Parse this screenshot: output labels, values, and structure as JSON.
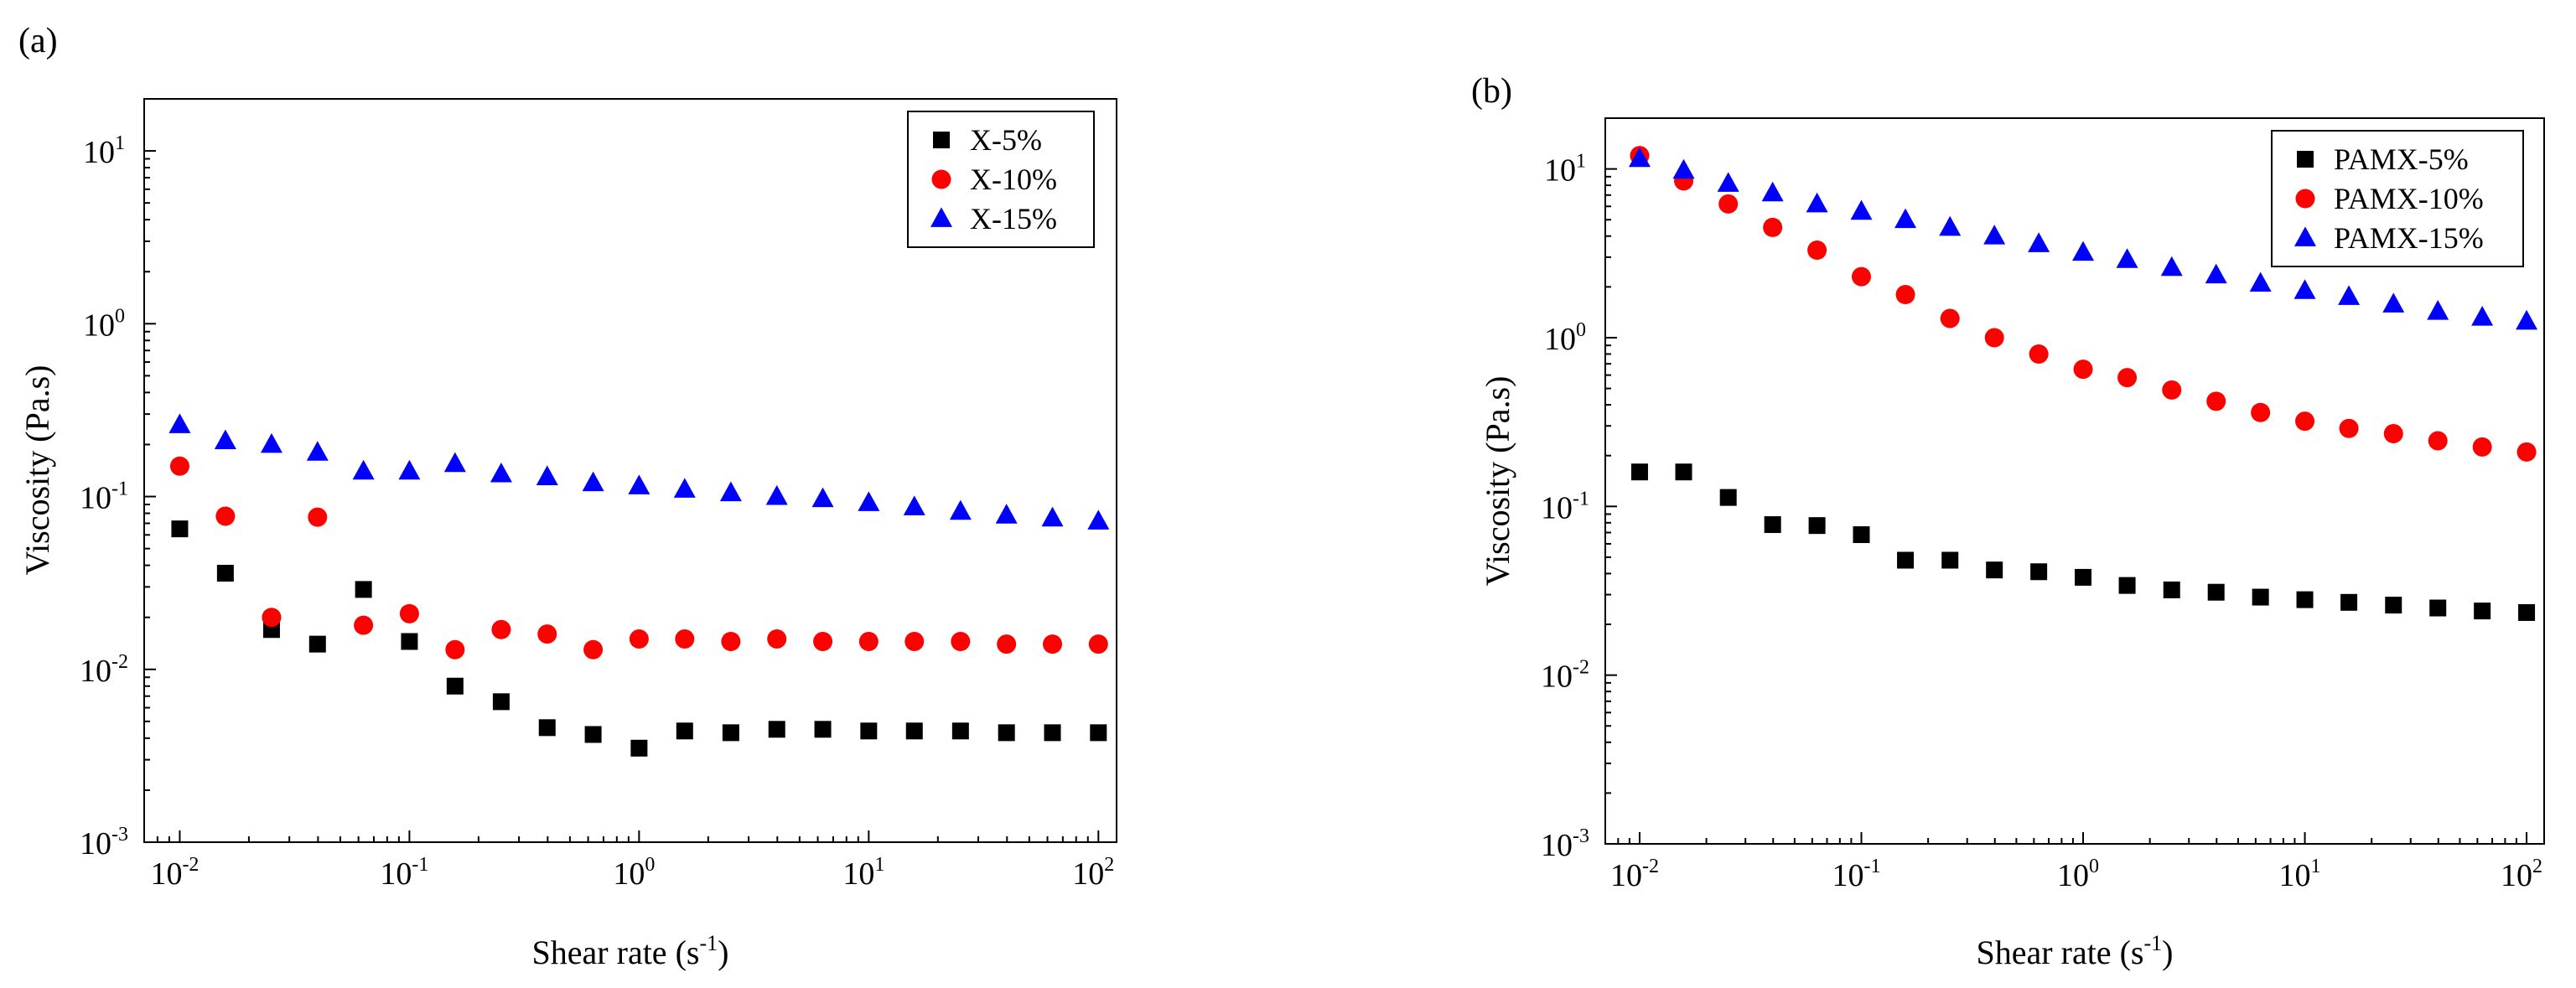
{
  "chart_data": [
    {
      "type": "scatter",
      "panel_label": "(a)",
      "xlabel": "Shear rate (s",
      "xlabel_sup": "-1",
      "xlabel_end": ")",
      "ylabel": "Viscosity (Pa.s)",
      "x_scale": "log",
      "y_scale": "log",
      "xlim": [
        0.007,
        120
      ],
      "ylim": [
        0.001,
        20
      ],
      "x_ticks": [
        0.01,
        0.1,
        1,
        10,
        100
      ],
      "x_tick_labels": [
        {
          "base": "10",
          "exp": "-2"
        },
        {
          "base": "10",
          "exp": "-1"
        },
        {
          "base": "10",
          "exp": "0"
        },
        {
          "base": "10",
          "exp": "1"
        },
        {
          "base": "10",
          "exp": "2"
        }
      ],
      "y_ticks": [
        0.001,
        0.01,
        0.1,
        1,
        10
      ],
      "y_tick_labels": [
        {
          "base": "10",
          "exp": "-3"
        },
        {
          "base": "10",
          "exp": "-2"
        },
        {
          "base": "10",
          "exp": "-1"
        },
        {
          "base": "10",
          "exp": "0"
        },
        {
          "base": "10",
          "exp": "1"
        }
      ],
      "legend_position": "top-right",
      "grid": false,
      "x": [
        0.01,
        0.0158,
        0.0251,
        0.0398,
        0.0631,
        0.1,
        0.158,
        0.251,
        0.398,
        0.631,
        1,
        1.58,
        2.51,
        3.98,
        6.31,
        10,
        15.8,
        25.1,
        39.8,
        63.1,
        100
      ],
      "series": [
        {
          "name": "X-5%",
          "marker": "square",
          "color": "#000000",
          "values": [
            0.065,
            0.036,
            0.017,
            0.014,
            0.029,
            0.0145,
            0.008,
            0.0065,
            0.0046,
            0.0042,
            0.0035,
            0.0044,
            0.0043,
            0.0045,
            0.0045,
            0.0044,
            0.0044,
            0.0044,
            0.0043,
            0.0043,
            0.0043
          ]
        },
        {
          "name": "X-10%",
          "marker": "circle",
          "color": "#ff0000",
          "values": [
            0.15,
            0.077,
            0.02,
            0.076,
            0.018,
            0.021,
            0.013,
            0.017,
            0.016,
            0.013,
            0.015,
            0.015,
            0.0145,
            0.015,
            0.0145,
            0.0145,
            0.0145,
            0.0145,
            0.014,
            0.014,
            0.014
          ]
        },
        {
          "name": "X-15%",
          "marker": "triangle",
          "color": "#0000ff",
          "values": [
            0.26,
            0.21,
            0.2,
            0.18,
            0.14,
            0.14,
            0.155,
            0.135,
            0.13,
            0.12,
            0.115,
            0.11,
            0.105,
            0.1,
            0.097,
            0.092,
            0.087,
            0.082,
            0.078,
            0.075,
            0.072
          ]
        }
      ]
    },
    {
      "type": "scatter",
      "panel_label": "(b)",
      "xlabel": "Shear rate (s",
      "xlabel_sup": "-1",
      "xlabel_end": ")",
      "ylabel": "Viscosity (Pa.s)",
      "x_scale": "log",
      "y_scale": "log",
      "xlim": [
        0.007,
        120
      ],
      "ylim": [
        0.001,
        20
      ],
      "x_ticks": [
        0.01,
        0.1,
        1,
        10,
        100
      ],
      "x_tick_labels": [
        {
          "base": "10",
          "exp": "-2"
        },
        {
          "base": "10",
          "exp": "-1"
        },
        {
          "base": "10",
          "exp": "0"
        },
        {
          "base": "10",
          "exp": "1"
        },
        {
          "base": "10",
          "exp": "2"
        }
      ],
      "y_ticks": [
        0.001,
        0.01,
        0.1,
        1,
        10
      ],
      "y_tick_labels": [
        {
          "base": "10",
          "exp": "-3"
        },
        {
          "base": "10",
          "exp": "-2"
        },
        {
          "base": "10",
          "exp": "-1"
        },
        {
          "base": "10",
          "exp": "0"
        },
        {
          "base": "10",
          "exp": "1"
        }
      ],
      "legend_position": "top-right",
      "grid": false,
      "x": [
        0.01,
        0.0158,
        0.0251,
        0.0398,
        0.0631,
        0.1,
        0.158,
        0.251,
        0.398,
        0.631,
        1,
        1.58,
        2.51,
        3.98,
        6.31,
        10,
        15.8,
        25.1,
        39.8,
        63.1,
        100
      ],
      "series": [
        {
          "name": "PAMX-5%",
          "marker": "square",
          "color": "#000000",
          "values": [
            0.16,
            0.16,
            0.113,
            0.078,
            0.077,
            0.068,
            0.048,
            0.048,
            0.042,
            0.041,
            0.038,
            0.034,
            0.032,
            0.031,
            0.029,
            0.028,
            0.027,
            0.026,
            0.025,
            0.024,
            0.0235
          ]
        },
        {
          "name": "PAMX-10%",
          "marker": "circle",
          "color": "#ff0000",
          "values": [
            12,
            8.5,
            6.2,
            4.5,
            3.3,
            2.3,
            1.8,
            1.3,
            1.0,
            0.8,
            0.65,
            0.58,
            0.49,
            0.42,
            0.36,
            0.32,
            0.29,
            0.27,
            0.245,
            0.225,
            0.21
          ]
        },
        {
          "name": "PAMX-15%",
          "marker": "triangle",
          "color": "#0000ff",
          "values": [
            11.5,
            9.8,
            8.2,
            7.2,
            6.2,
            5.6,
            5.0,
            4.5,
            4.0,
            3.6,
            3.2,
            2.9,
            2.6,
            2.35,
            2.1,
            1.9,
            1.75,
            1.58,
            1.43,
            1.32,
            1.25
          ]
        }
      ]
    }
  ]
}
